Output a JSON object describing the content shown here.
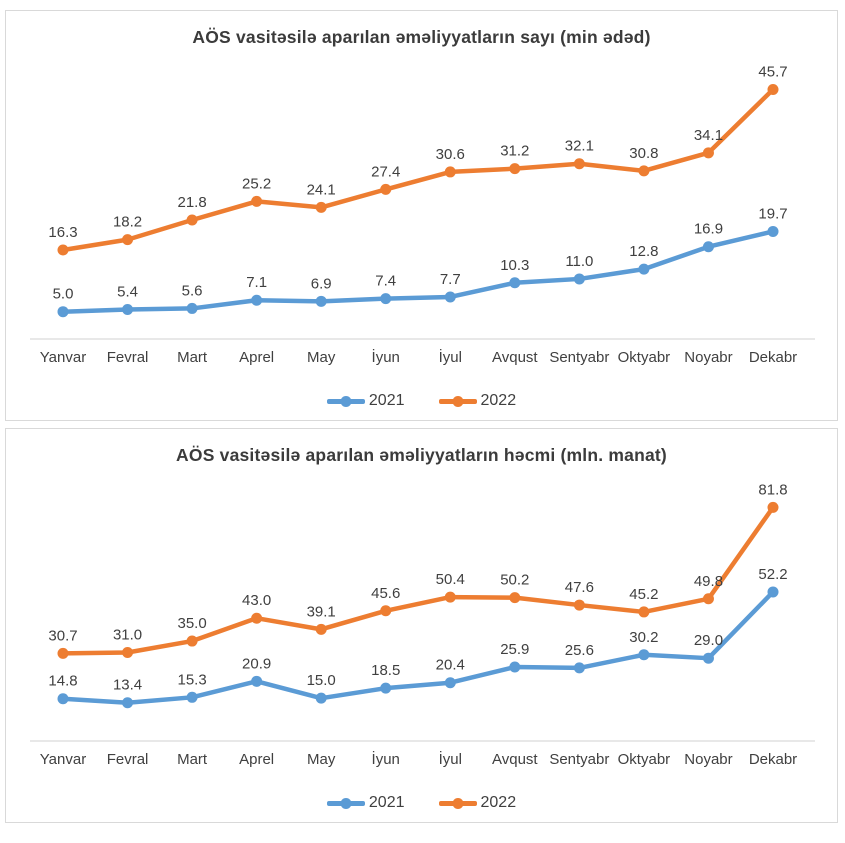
{
  "chart_data": [
    {
      "type": "line",
      "title": "AÖS vasitəsilə aparılan əməliyyatların sayı (min ədəd)",
      "categories": [
        "Yanvar",
        "Fevral",
        "Mart",
        "Aprel",
        "May",
        "İyun",
        "İyul",
        "Avqust",
        "Sentyabr",
        "Oktyabr",
        "Noyabr",
        "Dekabr"
      ],
      "series": [
        {
          "name": "2021",
          "color": "#5B9BD5",
          "values": [
            5.0,
            5.4,
            5.6,
            7.1,
            6.9,
            7.4,
            7.7,
            10.3,
            11.0,
            12.8,
            16.9,
            19.7
          ]
        },
        {
          "name": "2022",
          "color": "#ED7D31",
          "values": [
            16.3,
            18.2,
            21.8,
            25.2,
            24.1,
            27.4,
            30.6,
            31.2,
            32.1,
            30.8,
            34.1,
            45.7
          ]
        }
      ],
      "ylim": [
        0,
        50
      ],
      "grid": false,
      "legend_position": "bottom",
      "data_labels": true,
      "label_decimals": 1,
      "axis_color": "#d9d9d9",
      "text_color": "#404040"
    },
    {
      "type": "line",
      "title": "AÖS vasitəsilə aparılan əməliyyatların həcmi (mln. manat)",
      "categories": [
        "Yanvar",
        "Fevral",
        "Mart",
        "Aprel",
        "May",
        "İyun",
        "İyul",
        "Avqust",
        "Sentyabr",
        "Oktyabr",
        "Noyabr",
        "Dekabr"
      ],
      "series": [
        {
          "name": "2021",
          "color": "#5B9BD5",
          "values": [
            14.8,
            13.4,
            15.3,
            20.9,
            15.0,
            18.5,
            20.4,
            25.9,
            25.6,
            30.2,
            29.0,
            52.2
          ]
        },
        {
          "name": "2022",
          "color": "#ED7D31",
          "values": [
            30.7,
            31.0,
            35.0,
            43.0,
            39.1,
            45.6,
            50.4,
            50.2,
            47.6,
            45.2,
            49.8,
            81.8
          ]
        }
      ],
      "ylim": [
        0,
        90
      ],
      "grid": false,
      "legend_position": "bottom",
      "data_labels": true,
      "label_decimals": 1,
      "axis_color": "#d9d9d9",
      "text_color": "#404040"
    }
  ]
}
